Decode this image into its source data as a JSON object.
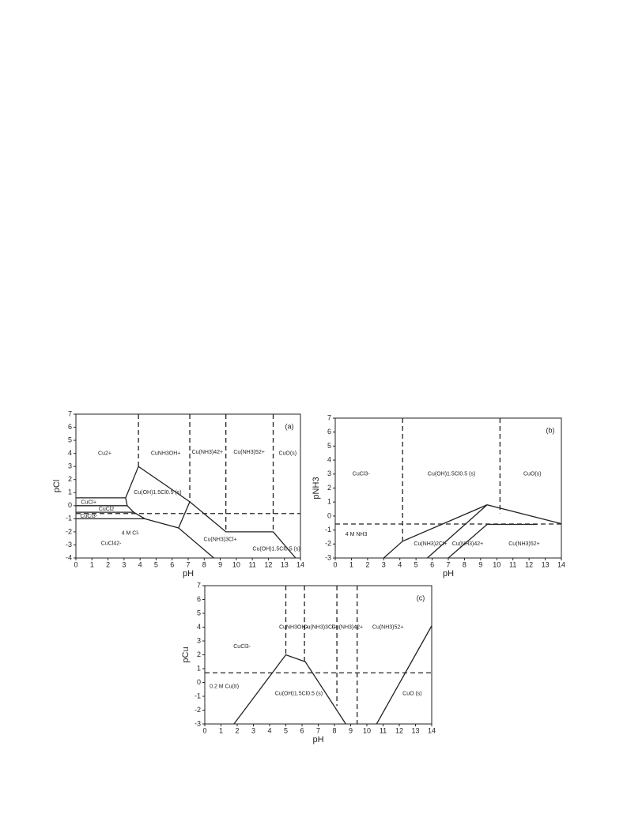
{
  "chart_data": [
    {
      "type": "line",
      "title": "(a)",
      "x_label": "pH",
      "y_label": "pCl",
      "xlim": [
        0,
        14
      ],
      "ylim": [
        -4,
        7
      ],
      "xticks": [
        0,
        1,
        2,
        3,
        4,
        5,
        6,
        7,
        8,
        9,
        10,
        11,
        12,
        13,
        14
      ],
      "yticks": [
        -4,
        -3,
        -2,
        -1,
        0,
        1,
        2,
        3,
        4,
        5,
        6,
        7
      ],
      "series": [
        {
          "x": [
            3.9,
            3.9
          ],
          "values": [
            7,
            3
          ],
          "dash": true
        },
        {
          "x": [
            7.1,
            7.1
          ],
          "values": [
            7,
            0.3
          ],
          "dash": true
        },
        {
          "x": [
            9.35,
            9.35
          ],
          "values": [
            7,
            -2
          ],
          "dash": true
        },
        {
          "x": [
            12.3,
            12.3
          ],
          "values": [
            7,
            -2
          ],
          "dash": true
        },
        {
          "x": [
            0,
            14
          ],
          "values": [
            -0.6,
            -0.6
          ],
          "dash": true
        },
        {
          "x": [
            0,
            3.1
          ],
          "values": [
            0.6,
            0.6
          ],
          "dash": false
        },
        {
          "x": [
            0,
            3.2
          ],
          "values": [
            0,
            0
          ],
          "dash": false
        },
        {
          "x": [
            0,
            3.6
          ],
          "values": [
            -0.5,
            -0.5
          ],
          "dash": false
        },
        {
          "x": [
            0,
            4.3
          ],
          "values": [
            -1,
            -1
          ],
          "dash": false
        },
        {
          "x": [
            3.1,
            3.9,
            7.1,
            9.35,
            12.3,
            13.7
          ],
          "values": [
            0.6,
            3,
            0.3,
            -2,
            -2,
            -4
          ],
          "dash": false
        },
        {
          "x": [
            3.1,
            3.2,
            3.6,
            4.3,
            6.4,
            8.6
          ],
          "values": [
            0.6,
            0,
            -0.5,
            -1,
            -1.7,
            -4
          ],
          "dash": false
        },
        {
          "x": [
            7.1,
            6.4
          ],
          "values": [
            0.3,
            -1.7
          ],
          "dash": false
        }
      ],
      "annotations": [
        {
          "text": "Cu2+",
          "x": 1.8,
          "y": 4
        },
        {
          "text": "CuNH3OH+",
          "x": 5.6,
          "y": 4
        },
        {
          "text": "Cu(NH3)42+",
          "x": 8.2,
          "y": 4.1
        },
        {
          "text": "Cu(NH3)52+",
          "x": 10.8,
          "y": 4.1
        },
        {
          "text": "CuO(s)",
          "x": 13.2,
          "y": 4
        },
        {
          "text": "Cu(OH)1.5Cl0.5 (s)",
          "x": 5.1,
          "y": 1
        },
        {
          "text": "CuCl+",
          "x": 0.8,
          "y": 0.25
        },
        {
          "text": "CuCl2",
          "x": 1.9,
          "y": -0.25
        },
        {
          "text": "CuCl3-",
          "x": 0.8,
          "y": -0.8
        },
        {
          "text": "4 M Cl-",
          "x": 3.4,
          "y": -2.1
        },
        {
          "text": "CuCl42-",
          "x": 2.2,
          "y": -2.9
        },
        {
          "text": "Cu(NH3)3Cl+",
          "x": 9,
          "y": -2.6
        },
        {
          "text": "Cu(OH)1.5Cl0.5 (s)",
          "x": 12.5,
          "y": -3.3
        }
      ]
    },
    {
      "type": "line",
      "title": "(b)",
      "x_label": "pH",
      "y_label": "pNH3",
      "xlim": [
        0,
        14
      ],
      "ylim": [
        -3,
        7
      ],
      "xticks": [
        0,
        1,
        2,
        3,
        4,
        5,
        6,
        7,
        8,
        9,
        10,
        11,
        12,
        13,
        14
      ],
      "yticks": [
        -3,
        -2,
        -1,
        0,
        1,
        2,
        3,
        4,
        5,
        6,
        7
      ],
      "series": [
        {
          "x": [
            4.17,
            4.17
          ],
          "values": [
            7,
            -1.8
          ],
          "dash": true
        },
        {
          "x": [
            10.2,
            10.2
          ],
          "values": [
            7,
            0.2
          ],
          "dash": true
        },
        {
          "x": [
            0,
            14
          ],
          "values": [
            -0.57,
            -0.57
          ],
          "dash": true
        },
        {
          "x": [
            3,
            4.17,
            9.4,
            14
          ],
          "values": [
            -3,
            -1.8,
            0.8,
            -0.55
          ],
          "dash": false
        },
        {
          "x": [
            5.7,
            9.4
          ],
          "values": [
            -3,
            0.8
          ],
          "dash": false
        },
        {
          "x": [
            7,
            9.4,
            12.5
          ],
          "values": [
            -3,
            -0.6,
            -0.6
          ],
          "dash": false
        }
      ],
      "annotations": [
        {
          "text": "CuCl3-",
          "x": 1.6,
          "y": 3
        },
        {
          "text": "Cu(OH)1.5Cl0.5 (s)",
          "x": 7.2,
          "y": 3
        },
        {
          "text": "CuO(s)",
          "x": 12.2,
          "y": 3
        },
        {
          "text": "4 M NH3",
          "x": 1.3,
          "y": -1.3
        },
        {
          "text": "Cu(NH3)2Cl+",
          "x": 5.9,
          "y": -2
        },
        {
          "text": "Cu(NH3)42+",
          "x": 8.2,
          "y": -2
        },
        {
          "text": "Cu(NH3)52+",
          "x": 11.7,
          "y": -2
        }
      ]
    },
    {
      "type": "line",
      "title": "(c)",
      "x_label": "pH",
      "y_label": "pCu",
      "xlim": [
        0,
        14
      ],
      "ylim": [
        -3,
        7
      ],
      "xticks": [
        0,
        1,
        2,
        3,
        4,
        5,
        6,
        7,
        8,
        9,
        10,
        11,
        12,
        13,
        14
      ],
      "yticks": [
        -3,
        -2,
        -1,
        0,
        1,
        2,
        3,
        4,
        5,
        6,
        7
      ],
      "series": [
        {
          "x": [
            5,
            5
          ],
          "values": [
            7,
            2
          ],
          "dash": true
        },
        {
          "x": [
            6.15,
            6.15
          ],
          "values": [
            7,
            1.5
          ],
          "dash": true
        },
        {
          "x": [
            8.15,
            8.15
          ],
          "values": [
            7,
            -1.7
          ],
          "dash": true
        },
        {
          "x": [
            9.4,
            9.4
          ],
          "values": [
            7,
            -3
          ],
          "dash": true
        },
        {
          "x": [
            0,
            14
          ],
          "values": [
            0.7,
            0.7
          ],
          "dash": true
        },
        {
          "x": [
            1.8,
            5,
            6.2,
            8.7
          ],
          "values": [
            -3,
            2,
            1.5,
            -3
          ],
          "dash": false
        },
        {
          "x": [
            10.6,
            14
          ],
          "values": [
            -3,
            4.1
          ],
          "dash": false
        }
      ],
      "annotations": [
        {
          "text": "CuCl3-",
          "x": 2.3,
          "y": 2.6
        },
        {
          "text": "CuNH3OH+",
          "x": 5.5,
          "y": 4
        },
        {
          "text": "Cu(NH3)3Cl+",
          "x": 7.1,
          "y": 4
        },
        {
          "text": "Cu(NH3)42+",
          "x": 8.8,
          "y": 4
        },
        {
          "text": "Cu(NH3)52+",
          "x": 11.3,
          "y": 4
        },
        {
          "text": "0.2 M Cu(II)",
          "x": 1.2,
          "y": -0.3
        },
        {
          "text": "Cu(OH)1.5Cl0.5 (s)",
          "x": 5.8,
          "y": -0.8
        },
        {
          "text": "CuO (s)",
          "x": 12.8,
          "y": -0.8
        }
      ]
    }
  ]
}
